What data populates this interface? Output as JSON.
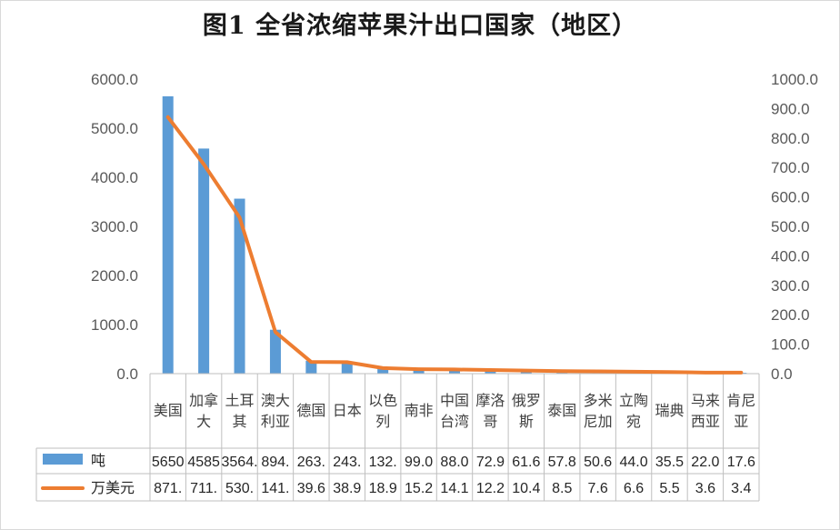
{
  "chart_data": {
    "type": "bar+line",
    "title": "图1 全省浓缩苹果汁出口国家（地区）",
    "categories": [
      [
        "美国"
      ],
      [
        "加拿",
        "大"
      ],
      [
        "土耳",
        "其"
      ],
      [
        "澳大",
        "利亚"
      ],
      [
        "德国"
      ],
      [
        "日本"
      ],
      [
        "以色",
        "列"
      ],
      [
        "南非"
      ],
      [
        "中国",
        "台湾"
      ],
      [
        "摩洛",
        "哥"
      ],
      [
        "俄罗",
        "斯"
      ],
      [
        "泰国"
      ],
      [
        "多米",
        "尼加"
      ],
      [
        "立陶",
        "宛"
      ],
      [
        "瑞典"
      ],
      [
        "马来",
        "西亚"
      ],
      [
        "肯尼",
        "亚"
      ]
    ],
    "series": [
      {
        "name": "吨",
        "type": "bar",
        "axis": "left",
        "color": "#5b9bd5",
        "values": [
          5650,
          4585,
          3564,
          894,
          263,
          243,
          132,
          99.0,
          88.0,
          72.9,
          61.6,
          57.8,
          50.6,
          44.0,
          35.5,
          22.0,
          17.6
        ],
        "labels": [
          "5650",
          "4585",
          "3564.",
          "894.",
          "263.",
          "243.",
          "132.",
          "99.0",
          "88.0",
          "72.9",
          "61.6",
          "57.8",
          "50.6",
          "44.0",
          "35.5",
          "22.0",
          "17.6"
        ]
      },
      {
        "name": "万美元",
        "type": "line",
        "axis": "right",
        "color": "#ed7d31",
        "values": [
          871,
          711,
          530,
          141,
          39.6,
          38.9,
          18.9,
          15.2,
          14.1,
          12.2,
          10.4,
          8.5,
          7.6,
          6.6,
          5.5,
          3.6,
          3.4
        ],
        "labels": [
          "871.",
          "711.",
          "530.",
          "141.",
          "39.6",
          "38.9",
          "18.9",
          "15.2",
          "14.1",
          "12.2",
          "10.4",
          "8.5",
          "7.6",
          "6.6",
          "5.5",
          "3.6",
          "3.4"
        ]
      }
    ],
    "y_left": {
      "range": [
        0,
        6000
      ],
      "ticks": [
        "0.0",
        "1000.0",
        "2000.0",
        "3000.0",
        "4000.0",
        "5000.0",
        "6000.0"
      ]
    },
    "y_right": {
      "range": [
        0,
        1000
      ],
      "ticks": [
        "0.0",
        "100.0",
        "200.0",
        "300.0",
        "400.0",
        "500.0",
        "600.0",
        "700.0",
        "800.0",
        "900.0",
        "1000.0"
      ]
    },
    "grid": false,
    "legend": "data-table-bottom"
  }
}
